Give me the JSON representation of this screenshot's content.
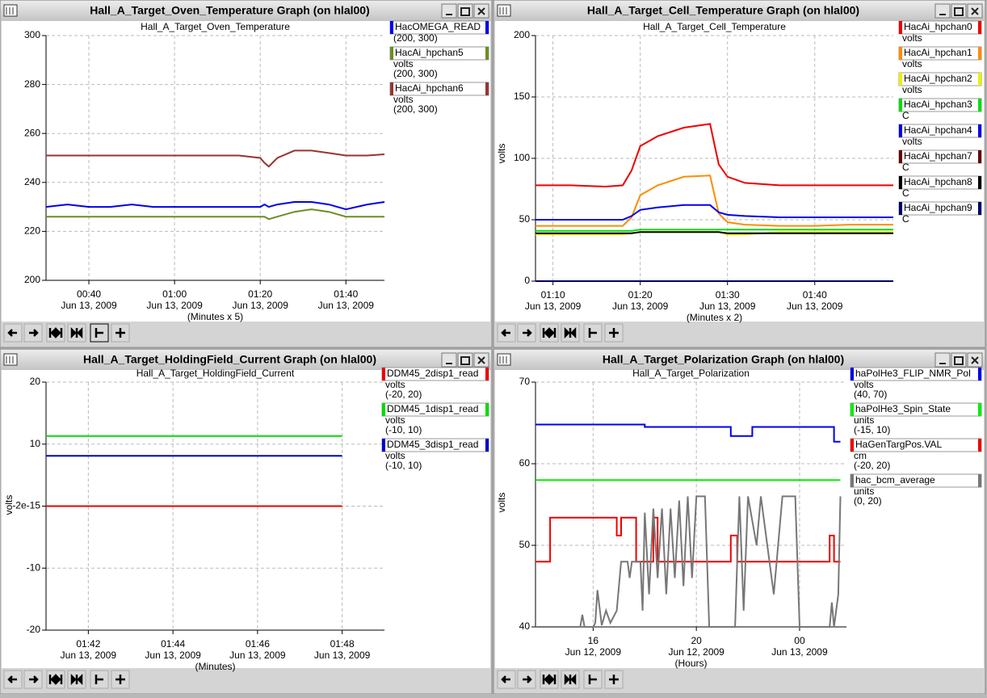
{
  "windows": [
    {
      "title": "Hall_A_Target_Oven_Temperature Graph (on hlal00)"
    },
    {
      "title": "Hall_A_Target_Cell_Temperature Graph (on hlal00)"
    },
    {
      "title": "Hall_A_Target_HoldingField_Current Graph (on hlal00)"
    },
    {
      "title": "Hall_A_Target_Polarization Graph (on hlal00)"
    }
  ],
  "chart_data": [
    {
      "type": "line",
      "title": "Hall_A_Target_Oven_Temperature",
      "x_label": "(Minutes x 5)",
      "ytick_color": "#0000cc",
      "grid": true,
      "xlim": [
        "2009-06-13 00:30",
        "2009-06-13 01:49"
      ],
      "xticks": [
        {
          "value": "2009-06-13 00:40",
          "label": [
            "00:40",
            "Jun 13, 2009"
          ]
        },
        {
          "value": "2009-06-13 01:00",
          "label": [
            "01:00",
            "Jun 13, 2009"
          ]
        },
        {
          "value": "2009-06-13 01:20",
          "label": [
            "01:20",
            "Jun 13, 2009"
          ]
        },
        {
          "value": "2009-06-13 01:40",
          "label": [
            "01:40",
            "Jun 13, 2009"
          ]
        }
      ],
      "ylim": [
        200,
        300
      ],
      "yticks": [
        200,
        220,
        240,
        260,
        280,
        300
      ],
      "x": [
        "2009-06-13 00:30",
        "2009-06-13 00:35",
        "2009-06-13 00:40",
        "2009-06-13 00:45",
        "2009-06-13 00:50",
        "2009-06-13 00:55",
        "2009-06-13 01:00",
        "2009-06-13 01:05",
        "2009-06-13 01:10",
        "2009-06-13 01:15",
        "2009-06-13 01:20",
        "2009-06-13 01:21",
        "2009-06-13 01:22",
        "2009-06-13 01:24",
        "2009-06-13 01:28",
        "2009-06-13 01:32",
        "2009-06-13 01:36",
        "2009-06-13 01:40",
        "2009-06-13 01:45",
        "2009-06-13 01:49"
      ],
      "series": [
        {
          "name": "HacOMEGA_READ",
          "range": "(200, 300)",
          "color": "#0000ee",
          "values": [
            230,
            231,
            230,
            230,
            231,
            230,
            230,
            230,
            230,
            230,
            230,
            231,
            230,
            231,
            232,
            232,
            231,
            229,
            231,
            232
          ]
        },
        {
          "name": "HacAi_hpchan5",
          "units": "volts",
          "range": "(200, 300)",
          "color": "#6b8e23",
          "values": [
            226,
            226,
            226,
            226,
            226,
            226,
            226,
            226,
            226,
            226,
            226,
            226,
            225,
            226,
            228,
            229,
            228,
            226,
            226,
            226
          ]
        },
        {
          "name": "HacAi_hpchan6",
          "units": "volts",
          "range": "(200, 300)",
          "color": "#993333",
          "values": [
            251,
            251,
            251,
            251,
            251,
            251,
            251,
            251,
            251,
            251,
            250,
            248,
            246.5,
            250,
            253,
            253,
            252,
            251,
            251,
            251.5
          ]
        }
      ]
    },
    {
      "type": "line",
      "title": "Hall_A_Target_Cell_Temperature",
      "x_label": "(Minutes x 2)",
      "y_label": "volts",
      "ytick_color": "#dd0000",
      "grid": true,
      "xlim": [
        "2009-06-13 01:08",
        "2009-06-13 01:49"
      ],
      "xticks": [
        {
          "value": "2009-06-13 01:10",
          "label": [
            "01:10",
            "Jun 13, 2009"
          ]
        },
        {
          "value": "2009-06-13 01:20",
          "label": [
            "01:20",
            "Jun 13, 2009"
          ]
        },
        {
          "value": "2009-06-13 01:30",
          "label": [
            "01:30",
            "Jun 13, 2009"
          ]
        },
        {
          "value": "2009-06-13 01:40",
          "label": [
            "01:40",
            "Jun 13, 2009"
          ]
        }
      ],
      "ylim": [
        0,
        200
      ],
      "yticks": [
        0,
        50,
        100,
        150,
        200
      ],
      "x": [
        "2009-06-13 01:08",
        "2009-06-13 01:12",
        "2009-06-13 01:16",
        "2009-06-13 01:18",
        "2009-06-13 01:19",
        "2009-06-13 01:20",
        "2009-06-13 01:22",
        "2009-06-13 01:25",
        "2009-06-13 01:28",
        "2009-06-13 01:29",
        "2009-06-13 01:30",
        "2009-06-13 01:32",
        "2009-06-13 01:36",
        "2009-06-13 01:40",
        "2009-06-13 01:44",
        "2009-06-13 01:49"
      ],
      "series": [
        {
          "name": "HacAi_hpchan0",
          "units": "volts",
          "color": "#ee0000",
          "values": [
            78,
            78,
            77,
            78,
            90,
            110,
            118,
            125,
            128,
            95,
            85,
            80,
            78,
            78,
            78,
            78
          ]
        },
        {
          "name": "HacAi_hpchan1",
          "units": "volts",
          "color": "#ff8c00",
          "values": [
            45,
            45,
            45,
            45,
            52,
            70,
            78,
            85,
            86,
            55,
            48,
            46,
            45,
            45,
            46,
            46
          ]
        },
        {
          "name": "HacAi_hpchan2",
          "units": "volts",
          "color": "#eeee00",
          "values": [
            38,
            38,
            38,
            38,
            39,
            40,
            40,
            40,
            40,
            40,
            38,
            38,
            40,
            40,
            40,
            40
          ]
        },
        {
          "name": "HacAi_hpchan3",
          "units": "C",
          "color": "#00dd00",
          "values": [
            41,
            41,
            41,
            41,
            41,
            42,
            42,
            42,
            42,
            42,
            42,
            42,
            42,
            42,
            42,
            42
          ]
        },
        {
          "name": "HacAi_hpchan4",
          "units": "volts",
          "color": "#0000ee",
          "values": [
            50,
            50,
            50,
            50,
            53,
            58,
            60,
            62,
            62,
            56,
            54,
            53,
            52,
            52,
            52,
            52
          ]
        },
        {
          "name": "HacAi_hpchan7",
          "units": "C",
          "color": "#660000",
          "values": [
            0,
            0,
            0,
            0,
            0,
            0,
            0,
            0,
            0,
            0,
            0,
            0,
            0,
            0,
            0,
            0
          ]
        },
        {
          "name": "HacAi_hpchan8",
          "units": "C",
          "color": "#000000",
          "values": [
            39,
            39,
            39,
            39,
            39,
            40,
            40,
            40,
            40,
            40,
            39,
            39,
            39,
            39,
            39,
            39
          ]
        },
        {
          "name": "HacAi_hpchan9",
          "units": "C",
          "color": "#000066",
          "values": [
            0,
            0,
            0,
            0,
            0,
            0,
            0,
            0,
            0,
            0,
            0,
            0,
            0,
            0,
            0,
            0
          ]
        }
      ]
    },
    {
      "type": "line",
      "title": "Hall_A_Target_HoldingField_Current",
      "x_label": "(Minutes)",
      "y_label": "volts",
      "ytick_color": "#dd0000",
      "grid": true,
      "xlim": [
        "2009-06-13 01:41",
        "2009-06-13 01:49"
      ],
      "xticks": [
        {
          "value": "2009-06-13 01:42",
          "label": [
            "01:42",
            "Jun 13, 2009"
          ]
        },
        {
          "value": "2009-06-13 01:44",
          "label": [
            "01:44",
            "Jun 13, 2009"
          ]
        },
        {
          "value": "2009-06-13 01:46",
          "label": [
            "01:46",
            "Jun 13, 2009"
          ]
        },
        {
          "value": "2009-06-13 01:48",
          "label": [
            "01:48",
            "Jun 13, 2009"
          ]
        }
      ],
      "ylim": [
        -20,
        20
      ],
      "yticks": [
        -20,
        -10,
        -2e-15,
        10,
        20
      ],
      "x": [
        "2009-06-13 01:41",
        "2009-06-13 01:48"
      ],
      "series": [
        {
          "name": "DDM45_2disp1_read",
          "units": "volts",
          "range": "(-20, 20)",
          "color": "#ee0000",
          "values": [
            0,
            0
          ]
        },
        {
          "name": "DDM45_1disp1_read",
          "units": "volts",
          "range": "(-10, 10)",
          "color": "#00dd00",
          "values": [
            11.3,
            11.3
          ]
        },
        {
          "name": "DDM45_3disp1_read",
          "units": "volts",
          "range": "(-10, 10)",
          "color": "#0000cc",
          "values": [
            8.1,
            8.1
          ]
        }
      ]
    },
    {
      "type": "line",
      "title": "Hall_A_Target_Polarization",
      "x_label": "(Hours)",
      "y_label": "volts",
      "ytick_color": "#0000cc",
      "grid": true,
      "xlim": [
        "2009-06-12 13:46",
        "2009-06-13 01:49"
      ],
      "xticks": [
        {
          "value": "2009-06-12 16:00",
          "label": [
            "16",
            "Jun 12, 2009"
          ]
        },
        {
          "value": "2009-06-12 20:00",
          "label": [
            "20",
            "Jun 12, 2009"
          ]
        },
        {
          "value": "2009-06-13 00:00",
          "label": [
            "00",
            "Jun 13, 2009"
          ]
        }
      ],
      "ylim": [
        40,
        70
      ],
      "yticks": [
        40,
        50,
        60,
        70
      ],
      "series": [
        {
          "name": "haPolHe3_FLIP_NMR_Pol",
          "units": "volts",
          "range": "(40, 70)",
          "color": "#0000ee",
          "x": [
            "2009-06-12 13:46",
            "2009-06-12 18:00",
            "2009-06-12 18:00",
            "2009-06-12 21:20",
            "2009-06-12 21:20",
            "2009-06-12 22:10",
            "2009-06-12 22:10",
            "2009-06-13 01:20",
            "2009-06-13 01:20",
            "2009-06-13 01:35"
          ],
          "values": [
            64.8,
            64.8,
            64.5,
            64.5,
            63.4,
            63.4,
            64.5,
            64.5,
            62.7,
            62.7
          ]
        },
        {
          "name": "haPolHe3_Spin_State",
          "units": "units",
          "range": "(-15, 10)",
          "color": "#00ee00",
          "x": [
            "2009-06-12 13:46",
            "2009-06-13 01:35"
          ],
          "values": [
            58,
            58
          ]
        },
        {
          "name": "HaGenTargPos.VAL",
          "units": "cm",
          "range": "(-20, 20)",
          "color": "#ee0000",
          "x": [
            "2009-06-12 13:46",
            "2009-06-12 14:20",
            "2009-06-12 14:20",
            "2009-06-12 16:55",
            "2009-06-12 16:55",
            "2009-06-12 17:05",
            "2009-06-12 17:05",
            "2009-06-12 17:40",
            "2009-06-12 17:40",
            "2009-06-12 18:20",
            "2009-06-12 18:20",
            "2009-06-12 18:30",
            "2009-06-12 18:30",
            "2009-06-12 21:20",
            "2009-06-12 21:20",
            "2009-06-12 21:35",
            "2009-06-12 21:35",
            "2009-06-13 01:10",
            "2009-06-13 01:10",
            "2009-06-13 01:20",
            "2009-06-13 01:20",
            "2009-06-13 01:35"
          ],
          "values": [
            48,
            48,
            53.4,
            53.4,
            51.2,
            51.2,
            53.4,
            53.4,
            48,
            48,
            53.4,
            53.4,
            48,
            48,
            51.2,
            51.2,
            48,
            48,
            51.2,
            51.2,
            48,
            48
          ]
        },
        {
          "name": "hac_bcm_average",
          "units": "units",
          "range": "(0, 20)",
          "color": "#777777",
          "x": [
            "2009-06-12 13:46",
            "2009-06-12 15:30",
            "2009-06-12 15:35",
            "2009-06-12 15:40",
            "2009-06-12 16:00",
            "2009-06-12 16:05",
            "2009-06-12 16:10",
            "2009-06-12 16:20",
            "2009-06-12 16:30",
            "2009-06-12 16:40",
            "2009-06-12 16:55",
            "2009-06-12 17:05",
            "2009-06-12 17:20",
            "2009-06-12 17:25",
            "2009-06-12 17:30",
            "2009-06-12 17:50",
            "2009-06-12 17:55",
            "2009-06-12 18:00",
            "2009-06-12 18:10",
            "2009-06-12 18:20",
            "2009-06-12 18:30",
            "2009-06-12 18:40",
            "2009-06-12 18:50",
            "2009-06-12 19:00",
            "2009-06-12 19:10",
            "2009-06-12 19:20",
            "2009-06-12 19:30",
            "2009-06-12 19:40",
            "2009-06-12 19:50",
            "2009-06-12 20:00",
            "2009-06-12 20:20",
            "2009-06-12 20:30",
            "2009-06-12 21:30",
            "2009-06-12 21:40",
            "2009-06-12 21:50",
            "2009-06-12 22:00",
            "2009-06-12 22:20",
            "2009-06-12 22:30",
            "2009-06-12 23:00",
            "2009-06-12 23:20",
            "2009-06-12 23:50",
            "2009-06-13 00:00",
            "2009-06-13 01:10",
            "2009-06-13 01:15",
            "2009-06-13 01:20",
            "2009-06-13 01:30",
            "2009-06-13 01:35"
          ],
          "values": [
            40,
            40,
            41.5,
            40,
            40,
            40.5,
            44.5,
            40.2,
            42,
            40.5,
            42,
            48,
            48,
            46,
            48,
            48,
            42,
            54,
            44,
            54.5,
            46,
            54.5,
            44,
            54.5,
            46,
            55.5,
            45,
            56,
            46,
            56,
            56,
            40,
            40,
            56,
            42,
            56,
            50,
            56,
            44,
            56,
            56,
            40,
            40,
            43,
            40,
            44,
            56
          ]
        }
      ]
    }
  ]
}
